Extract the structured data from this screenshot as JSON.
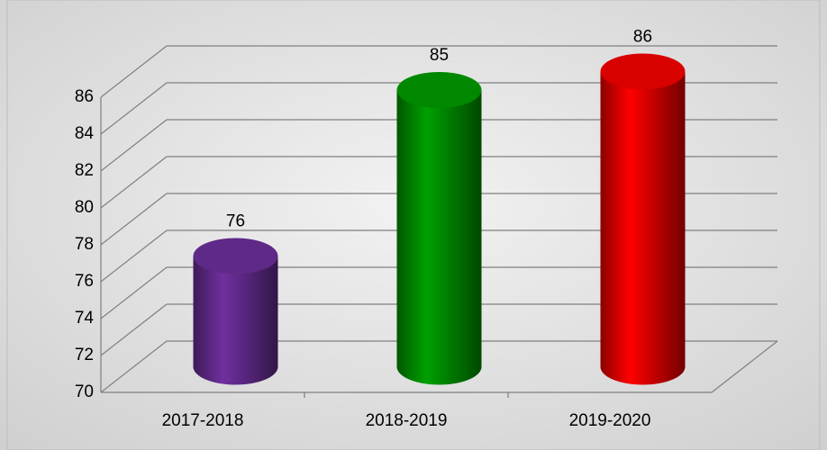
{
  "chart_data": {
    "type": "bar3d",
    "categories": [
      "2017-2018",
      "2018-2019",
      "2019-2020"
    ],
    "values": [
      76,
      85,
      86
    ],
    "colors": [
      "#7030a0",
      "#00a000",
      "#ff0000"
    ],
    "ylim": [
      70,
      86
    ],
    "yticks": [
      70,
      72,
      74,
      76,
      78,
      80,
      82,
      84,
      86
    ],
    "grid": true
  }
}
